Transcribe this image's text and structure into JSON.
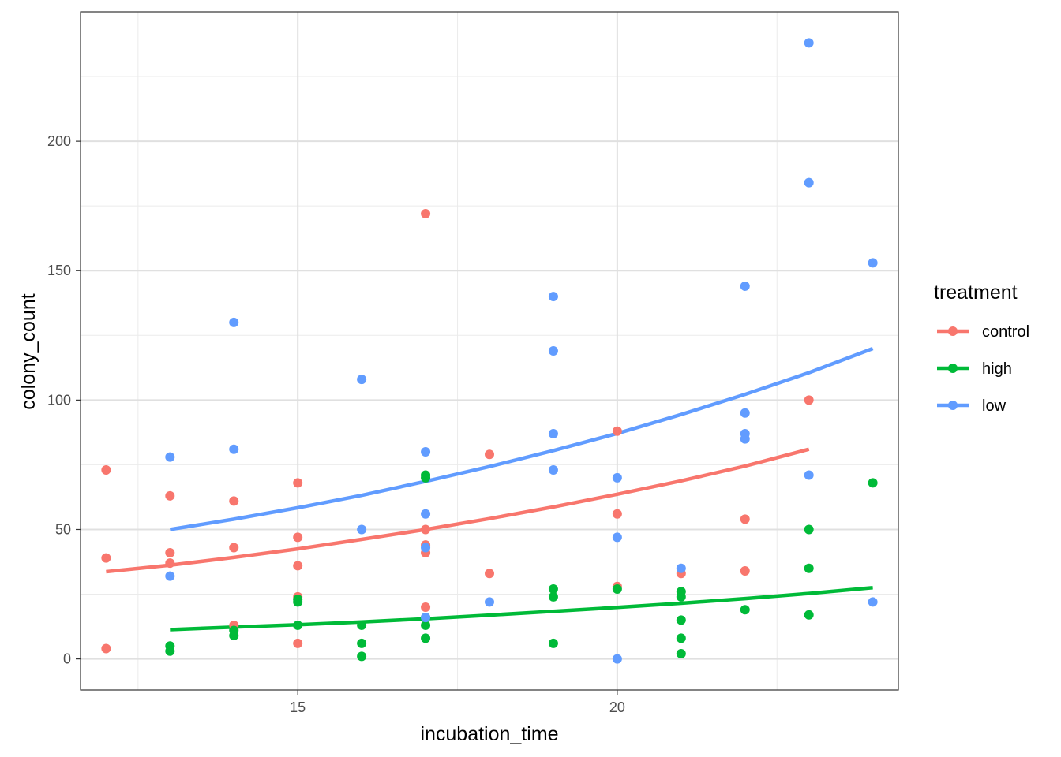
{
  "chart_data": {
    "type": "scatter",
    "title": "",
    "xlabel": "incubation_time",
    "ylabel": "colony_count",
    "xlim": [
      11.6,
      24.4
    ],
    "ylim": [
      -12,
      250
    ],
    "x_ticks": [
      15,
      20
    ],
    "x_minor_ticks": [
      12.5,
      17.5,
      22.5
    ],
    "y_ticks": [
      0,
      50,
      100,
      150,
      200
    ],
    "y_minor_ticks": [
      25,
      75,
      125,
      175,
      225
    ],
    "grid": true,
    "legend": {
      "title": "treatment",
      "position": "right",
      "entries": [
        "control",
        "high",
        "low"
      ]
    },
    "series": [
      {
        "name": "control",
        "color": "#F8766D",
        "points": [
          [
            12,
            73
          ],
          [
            12,
            39
          ],
          [
            12,
            4
          ],
          [
            13,
            63
          ],
          [
            13,
            41
          ],
          [
            13,
            37
          ],
          [
            14,
            61
          ],
          [
            14,
            43
          ],
          [
            14,
            13
          ],
          [
            15,
            68
          ],
          [
            15,
            47
          ],
          [
            15,
            36
          ],
          [
            15,
            24
          ],
          [
            15,
            6
          ],
          [
            17,
            172
          ],
          [
            17,
            50
          ],
          [
            17,
            44
          ],
          [
            17,
            41
          ],
          [
            17,
            20
          ],
          [
            18,
            79
          ],
          [
            18,
            33
          ],
          [
            20,
            88
          ],
          [
            20,
            56
          ],
          [
            20,
            28
          ],
          [
            21,
            33
          ],
          [
            22,
            54
          ],
          [
            22,
            34
          ],
          [
            23,
            100
          ]
        ],
        "fit": [
          [
            12,
            33.7
          ],
          [
            13,
            36.2
          ],
          [
            14,
            39.2
          ],
          [
            15,
            42.5
          ],
          [
            16,
            46.2
          ],
          [
            17,
            50.0
          ],
          [
            18,
            54.2
          ],
          [
            19,
            58.7
          ],
          [
            20,
            63.6
          ],
          [
            21,
            68.8
          ],
          [
            22,
            74.5
          ],
          [
            23,
            81.0
          ]
        ]
      },
      {
        "name": "high",
        "color": "#00BA38",
        "points": [
          [
            13,
            5
          ],
          [
            13,
            3
          ],
          [
            14,
            11
          ],
          [
            14,
            9
          ],
          [
            15,
            23
          ],
          [
            15,
            22
          ],
          [
            15,
            13
          ],
          [
            16,
            13
          ],
          [
            16,
            6
          ],
          [
            16,
            1
          ],
          [
            17,
            71
          ],
          [
            17,
            70
          ],
          [
            17,
            16
          ],
          [
            17,
            13
          ],
          [
            17,
            8
          ],
          [
            19,
            27
          ],
          [
            19,
            24
          ],
          [
            19,
            6
          ],
          [
            20,
            27
          ],
          [
            21,
            26
          ],
          [
            21,
            24
          ],
          [
            21,
            15
          ],
          [
            21,
            8
          ],
          [
            21,
            2
          ],
          [
            22,
            19
          ],
          [
            23,
            50
          ],
          [
            23,
            35
          ],
          [
            23,
            17
          ],
          [
            24,
            68
          ]
        ],
        "fit": [
          [
            13,
            11.3
          ],
          [
            14,
            12.3
          ],
          [
            15,
            13.2
          ],
          [
            16,
            14.3
          ],
          [
            17,
            15.5
          ],
          [
            18,
            16.9
          ],
          [
            19,
            18.4
          ],
          [
            20,
            19.9
          ],
          [
            21,
            21.5
          ],
          [
            22,
            23.3
          ],
          [
            23,
            25.3
          ],
          [
            24,
            27.5
          ]
        ]
      },
      {
        "name": "low",
        "color": "#619CFF",
        "points": [
          [
            13,
            78
          ],
          [
            13,
            32
          ],
          [
            14,
            130
          ],
          [
            14,
            81
          ],
          [
            16,
            108
          ],
          [
            16,
            50
          ],
          [
            17,
            80
          ],
          [
            17,
            56
          ],
          [
            17,
            43
          ],
          [
            17,
            16
          ],
          [
            18,
            22
          ],
          [
            19,
            140
          ],
          [
            19,
            119
          ],
          [
            19,
            87
          ],
          [
            19,
            73
          ],
          [
            20,
            70
          ],
          [
            20,
            47
          ],
          [
            20,
            0
          ],
          [
            21,
            35
          ],
          [
            22,
            144
          ],
          [
            22,
            95
          ],
          [
            22,
            87
          ],
          [
            22,
            85
          ],
          [
            23,
            238
          ],
          [
            23,
            184
          ],
          [
            23,
            71
          ],
          [
            24,
            153
          ],
          [
            24,
            22
          ]
        ],
        "fit": [
          [
            13,
            50.0
          ],
          [
            14,
            54.0
          ],
          [
            15,
            58.4
          ],
          [
            16,
            63.2
          ],
          [
            17,
            68.6
          ],
          [
            18,
            74.3
          ],
          [
            19,
            80.5
          ],
          [
            20,
            87.1
          ],
          [
            21,
            94.4
          ],
          [
            22,
            102.2
          ],
          [
            23,
            110.6
          ],
          [
            24,
            119.9
          ]
        ]
      }
    ]
  }
}
